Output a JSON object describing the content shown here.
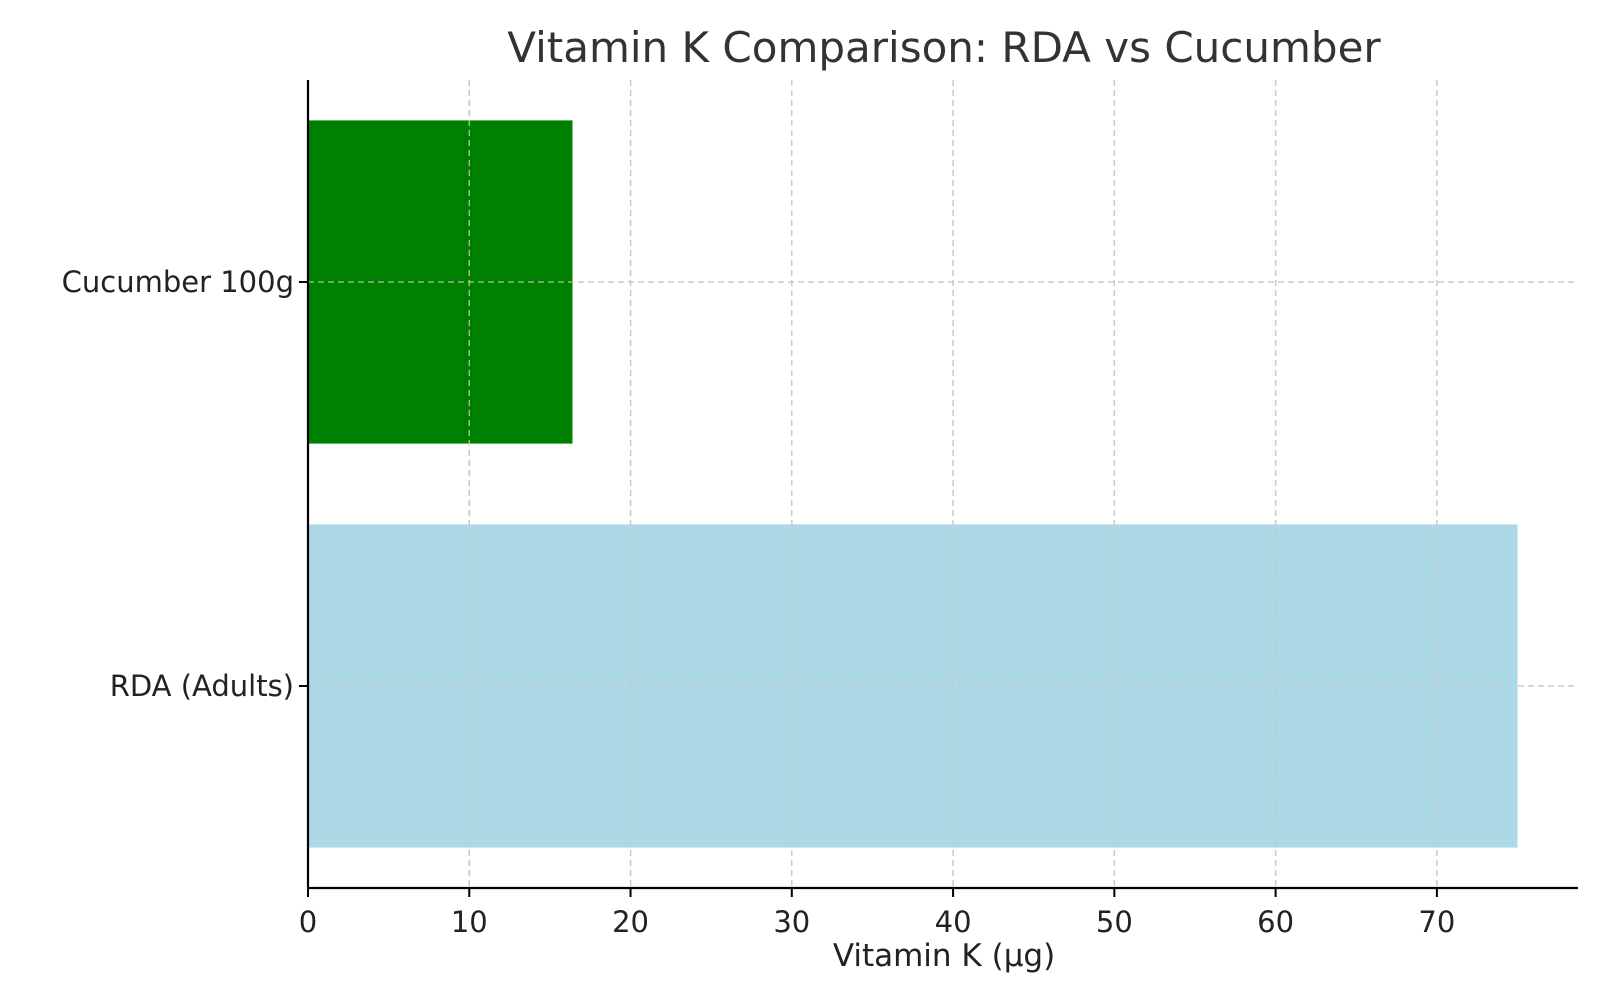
{
  "chart_data": {
    "type": "bar",
    "orientation": "horizontal",
    "title": "Vitamin K Comparison: RDA vs Cucumber",
    "xlabel": "Vitamin K (µg)",
    "ylabel": "",
    "categories": [
      "RDA (Adults)",
      "Cucumber 100g"
    ],
    "values": [
      75,
      16.4
    ],
    "colors": [
      "#add8e6",
      "#008000"
    ],
    "xlim": [
      0,
      78.75
    ],
    "xticks": [
      0,
      10,
      20,
      30,
      40,
      50,
      60,
      70
    ],
    "grid": true,
    "legend": "none"
  }
}
